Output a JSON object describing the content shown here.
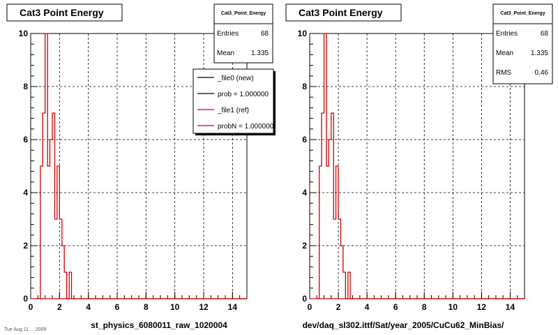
{
  "footer_note": "Tue Aug 11 ... 2009",
  "colors": {
    "ref": "#cc0000",
    "new": "#000000",
    "grid": "#000000",
    "frame": "#000000"
  },
  "chart_data": [
    {
      "type": "histogram",
      "title": "Cat3 Point Energy",
      "xlabel": "st_physics_6080011_raw_1020004",
      "xlim": [
        0,
        15
      ],
      "ylim": [
        0,
        10
      ],
      "xticks": [
        "0",
        "2",
        "4",
        "6",
        "8",
        "10",
        "12",
        "14"
      ],
      "yticks": [
        "0",
        "2",
        "4",
        "6",
        "8",
        "10"
      ],
      "grid": true,
      "stats": {
        "title": "Cat3_Point_Energy",
        "rows": [
          {
            "label": "Entries",
            "value": "68"
          },
          {
            "label": "Mean",
            "value": "1.335"
          }
        ]
      },
      "legend": {
        "placement": "top-right",
        "entries": [
          {
            "label": "_file0 (new)",
            "color": "#000000"
          },
          {
            "label": "prob = 1.000000",
            "color": "#000000"
          },
          {
            "label": "_file1 (ref)",
            "color": "#cc0000"
          },
          {
            "label": "probN = 1.000000",
            "color": "#cc0000"
          }
        ]
      },
      "series": [
        {
          "name": "_file1 (ref)",
          "color": "#cc0000",
          "bin_edges": [
            0.5,
            0.67,
            0.83,
            1.0,
            1.17,
            1.33,
            1.5,
            1.67,
            1.83,
            2.0,
            2.17,
            2.33,
            2.5,
            2.67,
            2.83,
            3.0
          ],
          "counts": [
            0,
            5,
            7,
            10,
            5,
            6,
            7,
            3,
            5,
            3,
            2,
            1,
            0,
            1,
            0
          ]
        }
      ]
    },
    {
      "type": "histogram",
      "title": "Cat3 Point Energy",
      "xlabel": "dev/daq_sl302.ittf/Sat/year_2005/CuCu62_MinBias/",
      "xlim": [
        0,
        15
      ],
      "ylim": [
        0,
        10
      ],
      "xticks": [
        "0",
        "2",
        "4",
        "6",
        "8",
        "10",
        "12",
        "14"
      ],
      "yticks": [
        "0",
        "2",
        "4",
        "6",
        "8",
        "10"
      ],
      "grid": true,
      "stats": {
        "title": "Cat3_Point_Energy",
        "rows": [
          {
            "label": "Entries",
            "value": "68"
          },
          {
            "label": "Mean",
            "value": "1.335"
          },
          {
            "label": "RMS",
            "value": "0.46"
          }
        ]
      },
      "series": [
        {
          "name": "",
          "color": "#cc0000",
          "bin_edges": [
            0.5,
            0.67,
            0.83,
            1.0,
            1.17,
            1.33,
            1.5,
            1.67,
            1.83,
            2.0,
            2.17,
            2.33,
            2.5,
            2.67,
            2.83,
            3.0
          ],
          "counts": [
            0,
            5,
            7,
            10,
            5,
            6,
            7,
            3,
            5,
            3,
            2,
            1,
            0,
            1,
            0
          ]
        }
      ]
    }
  ]
}
